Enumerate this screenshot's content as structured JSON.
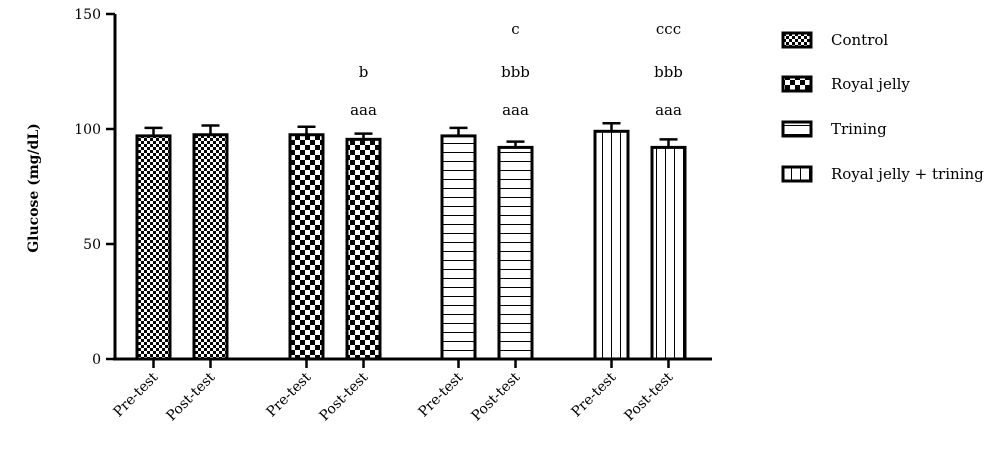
{
  "chart_data": {
    "type": "bar",
    "title": "",
    "xlabel": "",
    "ylabel": "Glucose (mg/dL)",
    "ylim": [
      0,
      150
    ],
    "yticks": [
      0,
      50,
      100,
      150
    ],
    "grid": false,
    "legend_position": "right",
    "series": [
      {
        "name": "Control",
        "pattern": "checker-small",
        "categories": [
          "Pre-test",
          "Post-test"
        ],
        "values": [
          97,
          97.5
        ],
        "errors": [
          3.5,
          4
        ],
        "annotations": [
          [],
          []
        ]
      },
      {
        "name": "Royal jelly",
        "pattern": "checker-large",
        "categories": [
          "Pre-test",
          "Post-test"
        ],
        "values": [
          97.5,
          95.5
        ],
        "errors": [
          3.5,
          2.5
        ],
        "annotations": [
          [],
          [
            "aaa",
            "b"
          ]
        ]
      },
      {
        "name": "Trining",
        "pattern": "horizontal-lines",
        "categories": [
          "Pre-test",
          "Post-test"
        ],
        "values": [
          97,
          92
        ],
        "errors": [
          3.5,
          2.5
        ],
        "annotations": [
          [],
          [
            "aaa",
            "bbb",
            "c"
          ]
        ]
      },
      {
        "name": "Royal jelly + trining",
        "pattern": "vertical-lines",
        "categories": [
          "Pre-test",
          "Post-test"
        ],
        "values": [
          99,
          92
        ],
        "errors": [
          3.5,
          3.5
        ],
        "annotations": [
          [],
          [
            "aaa",
            "bbb",
            "ccc"
          ]
        ]
      }
    ]
  }
}
